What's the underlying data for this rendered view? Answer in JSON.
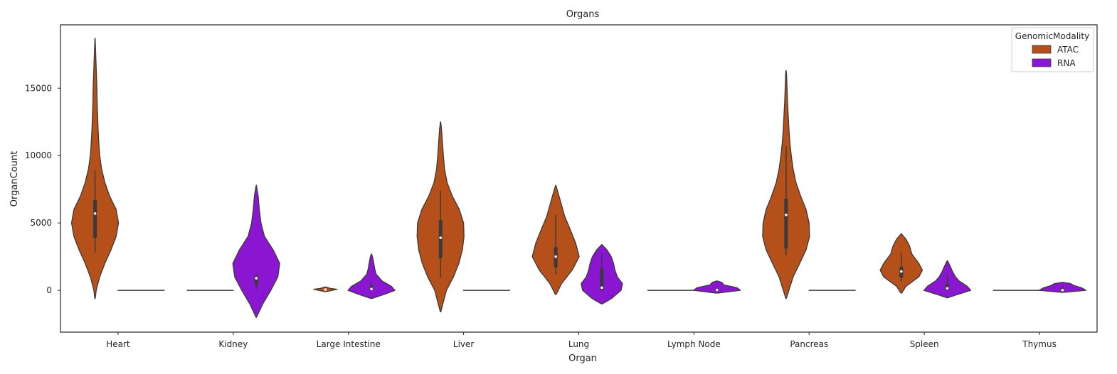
{
  "chart_data": {
    "type": "violin",
    "title": "Organs",
    "xlabel": "Organ",
    "ylabel": "OrganCount",
    "ylim": [
      -3100,
      19700
    ],
    "yticks": [
      0,
      5000,
      10000,
      15000
    ],
    "grid": false,
    "categories": [
      "Heart",
      "Kidney",
      "Large Intestine",
      "Liver",
      "Lung",
      "Lymph Node",
      "Pancreas",
      "Spleen",
      "Thymus"
    ],
    "legend": {
      "title": "GenomicModality",
      "position": "top-right"
    },
    "series": [
      {
        "name": "ATAC",
        "color": "#b5501a",
        "violins": [
          {
            "profile": [
              [
                -600,
                0.01
              ],
              [
                0,
                0.05
              ],
              [
                1000,
                0.2
              ],
              [
                2000,
                0.42
              ],
              [
                3000,
                0.68
              ],
              [
                4000,
                0.9
              ],
              [
                5000,
                1.0
              ],
              [
                6000,
                0.9
              ],
              [
                7000,
                0.62
              ],
              [
                8000,
                0.42
              ],
              [
                9000,
                0.28
              ],
              [
                10000,
                0.2
              ],
              [
                11000,
                0.16
              ],
              [
                12000,
                0.13
              ],
              [
                13000,
                0.11
              ],
              [
                14000,
                0.09
              ],
              [
                15000,
                0.08
              ],
              [
                16000,
                0.06
              ],
              [
                17000,
                0.04
              ],
              [
                18000,
                0.02
              ],
              [
                18700,
                0.005
              ]
            ],
            "q1": 3900,
            "median": 5700,
            "q3": 6700,
            "whisker_low": 2800,
            "whisker_high": 8900
          },
          {
            "flat": true,
            "value": 0
          },
          {
            "profile": [
              [
                -100,
                0.02
              ],
              [
                0,
                0.3
              ],
              [
                80,
                0.5
              ],
              [
                150,
                0.2
              ],
              [
                250,
                0.02
              ]
            ],
            "q1": 20,
            "median": 60,
            "q3": 110,
            "whisker_low": 0,
            "whisker_high": 180
          },
          {
            "profile": [
              [
                -1600,
                0.01
              ],
              [
                0,
                0.25
              ],
              [
                1000,
                0.55
              ],
              [
                2000,
                0.78
              ],
              [
                3000,
                0.93
              ],
              [
                4000,
                1.0
              ],
              [
                5000,
                0.98
              ],
              [
                6000,
                0.8
              ],
              [
                7000,
                0.5
              ],
              [
                8000,
                0.28
              ],
              [
                9000,
                0.17
              ],
              [
                10000,
                0.12
              ],
              [
                11000,
                0.08
              ],
              [
                12000,
                0.04
              ],
              [
                12500,
                0.005
              ]
            ],
            "q1": 2400,
            "median": 3900,
            "q3": 5200,
            "whisker_low": 900,
            "whisker_high": 7400
          },
          {
            "profile": [
              [
                -300,
                0.02
              ],
              [
                500,
                0.25
              ],
              [
                1500,
                0.7
              ],
              [
                2500,
                1.0
              ],
              [
                3500,
                0.85
              ],
              [
                4500,
                0.62
              ],
              [
                5500,
                0.38
              ],
              [
                6500,
                0.22
              ],
              [
                7300,
                0.09
              ],
              [
                7800,
                0.005
              ]
            ],
            "q1": 1700,
            "median": 2500,
            "q3": 3200,
            "whisker_low": 1200,
            "whisker_high": 5600
          },
          {
            "flat": true,
            "value": 0
          },
          {
            "profile": [
              [
                -600,
                0.01
              ],
              [
                0,
                0.12
              ],
              [
                1000,
                0.3
              ],
              [
                2000,
                0.58
              ],
              [
                3000,
                0.85
              ],
              [
                4000,
                1.0
              ],
              [
                5000,
                0.98
              ],
              [
                6000,
                0.85
              ],
              [
                7000,
                0.62
              ],
              [
                8000,
                0.42
              ],
              [
                9000,
                0.3
              ],
              [
                10000,
                0.22
              ],
              [
                11000,
                0.16
              ],
              [
                12000,
                0.12
              ],
              [
                13000,
                0.09
              ],
              [
                14000,
                0.06
              ],
              [
                15000,
                0.04
              ],
              [
                16000,
                0.02
              ],
              [
                16300,
                0.005
              ]
            ],
            "q1": 3100,
            "median": 5600,
            "q3": 6800,
            "whisker_low": 2600,
            "whisker_high": 10700
          },
          {
            "profile": [
              [
                -200,
                0.02
              ],
              [
                300,
                0.2
              ],
              [
                1000,
                0.75
              ],
              [
                1500,
                0.9
              ],
              [
                2000,
                0.75
              ],
              [
                2700,
                0.45
              ],
              [
                3300,
                0.35
              ],
              [
                3800,
                0.2
              ],
              [
                4200,
                0.005
              ]
            ],
            "q1": 950,
            "median": 1400,
            "q3": 1750,
            "whisker_low": 650,
            "whisker_high": 2800
          },
          {
            "flat": true,
            "value": 0
          }
        ]
      },
      {
        "name": "RNA",
        "color": "#8b16d1",
        "violins": [
          {
            "flat": true,
            "value": 0
          },
          {
            "profile": [
              [
                -2000,
                0.01
              ],
              [
                -1000,
                0.28
              ],
              [
                0,
                0.62
              ],
              [
                1000,
                0.92
              ],
              [
                2000,
                1.0
              ],
              [
                3000,
                0.72
              ],
              [
                4000,
                0.35
              ],
              [
                5000,
                0.2
              ],
              [
                6000,
                0.13
              ],
              [
                7000,
                0.08
              ],
              [
                7800,
                0.005
              ]
            ],
            "q1": 400,
            "median": 900,
            "q3": 1100,
            "whisker_low": 100,
            "whisker_high": 1200
          },
          {
            "profile": [
              [
                -600,
                0.03
              ],
              [
                -300,
                0.55
              ],
              [
                0,
                1.0
              ],
              [
                300,
                0.85
              ],
              [
                700,
                0.45
              ],
              [
                1200,
                0.2
              ],
              [
                1600,
                0.14
              ],
              [
                2000,
                0.1
              ],
              [
                2400,
                0.06
              ],
              [
                2700,
                0.005
              ]
            ],
            "q1": 50,
            "median": 100,
            "q3": 350,
            "whisker_low": 0,
            "whisker_high": 700
          },
          {
            "flat": true,
            "value": 0
          },
          {
            "profile": [
              [
                -1000,
                0.03
              ],
              [
                -600,
                0.42
              ],
              [
                0,
                0.82
              ],
              [
                500,
                0.88
              ],
              [
                1000,
                0.66
              ],
              [
                1500,
                0.56
              ],
              [
                2000,
                0.5
              ],
              [
                2500,
                0.4
              ],
              [
                3000,
                0.22
              ],
              [
                3400,
                0.005
              ]
            ],
            "q1": 0,
            "median": 200,
            "q3": 1600,
            "whisker_low": 0,
            "whisker_high": 2800
          },
          {
            "profile": [
              [
                -200,
                0.05
              ],
              [
                0,
                1.0
              ],
              [
                200,
                0.85
              ],
              [
                400,
                0.3
              ],
              [
                600,
                0.2
              ],
              [
                700,
                0.005
              ]
            ],
            "q1": 0,
            "median": 30,
            "q3": 100,
            "whisker_low": 0,
            "whisker_high": 250
          },
          {
            "flat": true,
            "value": 0
          },
          {
            "profile": [
              [
                -550,
                0.03
              ],
              [
                -300,
                0.45
              ],
              [
                0,
                1.0
              ],
              [
                300,
                0.85
              ],
              [
                700,
                0.5
              ],
              [
                1000,
                0.35
              ],
              [
                1400,
                0.22
              ],
              [
                1800,
                0.12
              ],
              [
                2200,
                0.005
              ]
            ],
            "q1": 0,
            "median": 150,
            "q3": 500,
            "whisker_low": 0,
            "whisker_high": 1200
          },
          {
            "profile": [
              [
                -150,
                0.05
              ],
              [
                0,
                1.0
              ],
              [
                200,
                0.8
              ],
              [
                350,
                0.5
              ],
              [
                500,
                0.35
              ],
              [
                600,
                0.005
              ]
            ],
            "q1": 0,
            "median": 20,
            "q3": 150,
            "whisker_low": 0,
            "whisker_high": 300
          }
        ]
      }
    ]
  }
}
